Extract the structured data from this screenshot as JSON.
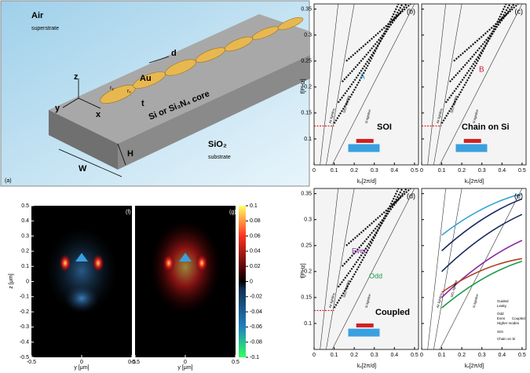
{
  "panel_a": {
    "label": "(a)",
    "air": "Air",
    "superstrate": "superstrate",
    "d": "d",
    "au": "Au",
    "z": "z",
    "y": "y",
    "x": "x",
    "ry": "rᵧ",
    "rx": "rₓ",
    "t": "t",
    "core": "Si or Si₃N₄ core",
    "h": "H",
    "w": "W",
    "sio2": "SiO₂",
    "substrate": "substrate"
  },
  "band_axes": {
    "y_label": "f[PHz]",
    "x_label": "kₓ[2π/d]",
    "yticks": [
      0.1,
      0.15,
      0.2,
      0.25,
      0.3,
      0.35
    ],
    "xticks": [
      0,
      0.1,
      0.2,
      0.3,
      0.4,
      0.5
    ],
    "air_lightline": "Air lightline",
    "sio2_lightline": "SiO₂ lightline",
    "si_lightline": "Si lightline"
  },
  "panel_b": {
    "label": "(b)",
    "mode": "A",
    "name": "SOI"
  },
  "panel_c": {
    "label": "(c)",
    "mode": "B",
    "name": "Chain on Si"
  },
  "panel_d": {
    "label": "(d)",
    "even": "Even",
    "odd": "Odd",
    "name": "Coupled"
  },
  "panel_e": {
    "label": "(e)",
    "guided": "Guided",
    "leaky": "Leaky",
    "odd": "Odd",
    "even": "Even",
    "higher": "Higher modes",
    "coupled": "Coupled",
    "soi": "SOI",
    "chain": "Chain on Si"
  },
  "field_maps": {
    "label_f": "(f)",
    "label_g": "(g)",
    "z_label": "z [μm]",
    "y_label": "y [μm]",
    "zticks": [
      0.5,
      0.4,
      0.3,
      0.2,
      0.1,
      0,
      -0.1,
      -0.2,
      -0.3,
      -0.4,
      -0.5
    ],
    "yticks": [
      -0.5,
      0,
      0.5
    ],
    "colorbar_ticks": [
      0.1,
      0.08,
      0.06,
      0.04,
      0.02,
      0,
      -0.02,
      -0.04,
      -0.06,
      -0.08,
      -0.1
    ]
  }
}
